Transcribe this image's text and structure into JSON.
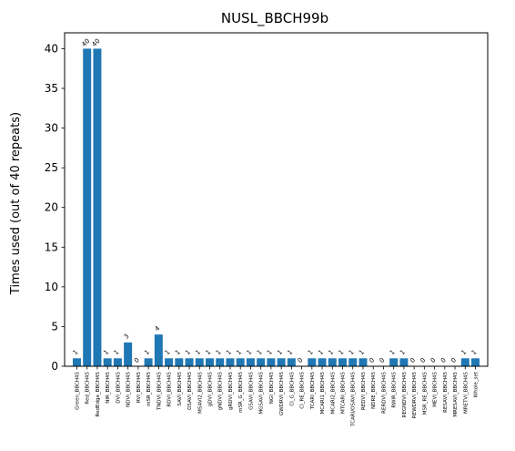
{
  "chart_data": {
    "type": "bar",
    "title": "NUSL_BBCH99b",
    "xlabel": "",
    "ylabel": "Times used (out of 40 repeats)",
    "ylim": [
      0,
      42
    ],
    "yticks": [
      0,
      5,
      10,
      15,
      20,
      25,
      30,
      35,
      40
    ],
    "grid": false,
    "bar_color": "#1f77b4",
    "categories": [
      "Green_BBCH45",
      "Red_BBCH45",
      "RedEdge_BBCH45",
      "NIR_BBCH45",
      "DVI_BBCH45",
      "NDVI_BBCH45",
      "RVI_BBCH45",
      "mSR_BBCH45",
      "TNDVI_BBCH45",
      "RDVI_BBCH45",
      "SAVI_BBCH45",
      "OSAVI_BBCH45",
      "MSAVI2_BBCH45",
      "gDVI_BBCH45",
      "gNDVI_BBCH45",
      "gRDVI_BBCH45",
      "mSR_G_BBCH45",
      "GSAVI_BBCH45",
      "MGSAVI_BBCH45",
      "NGI_BBCH45",
      "GWDRVI_BBCH45",
      "CI_G_BBCH45",
      "CI_RE_BBCH45",
      "TCARI_BBCH45",
      "MCARI1_BBCH45",
      "MCARI2_BBCH45",
      "MTCARI_BBCH45",
      "TCARI/OSAVI_BBCH45",
      "REDVI_BBCH45",
      "NDRE_BBCH45",
      "RERDVI_BBCH45",
      "RWIR_BBCH45",
      "REGNDVI_BBCH45",
      "REWDRVI_BBCH45",
      "MSR_RE_BBCH45",
      "MEVI_BBCH45",
      "RESAVI_BBCH45",
      "MRESAVI_BBCH45",
      "MRETVI_BBCH45",
      "Whole_set"
    ],
    "values": [
      1,
      40,
      40,
      1,
      1,
      3,
      0,
      1,
      4,
      1,
      1,
      1,
      1,
      1,
      1,
      1,
      1,
      1,
      1,
      1,
      1,
      1,
      0,
      1,
      1,
      1,
      1,
      1,
      1,
      0,
      0,
      1,
      1,
      0,
      0,
      0,
      0,
      0,
      1,
      1
    ],
    "data_labels": [
      "1",
      "40",
      "40",
      "1",
      "1",
      "3",
      "0",
      "1",
      "4",
      "1",
      "1",
      "1",
      "1",
      "1",
      "1",
      "1",
      "1",
      "1",
      "1",
      "1",
      "1",
      "1",
      "0",
      "1",
      "1",
      "1",
      "1",
      "1",
      "1",
      "0",
      "0",
      "1",
      "1",
      "0",
      "0",
      "0",
      "0",
      "0",
      "1",
      "1"
    ]
  }
}
